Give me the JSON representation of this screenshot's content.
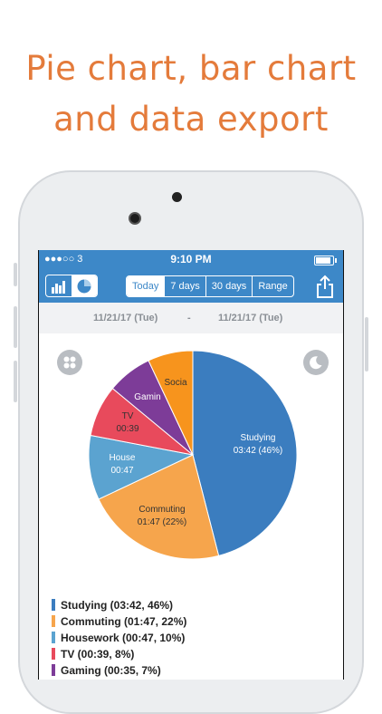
{
  "headline": {
    "line1": "Pie chart, bar chart",
    "line2": "and data export"
  },
  "status": {
    "carrier": "●●●○○ 3",
    "time": "9:10 PM"
  },
  "tabs": [
    {
      "label": "Today",
      "active": true
    },
    {
      "label": "7 days",
      "active": false
    },
    {
      "label": "30 days",
      "active": false
    },
    {
      "label": "Range",
      "active": false
    }
  ],
  "dates": {
    "start": "11/21/17 (Tue)",
    "separator": "-",
    "end": "11/21/17 (Tue)"
  },
  "pie_labels": {
    "studying_1": "Studying",
    "studying_2": "03:42 (46%)",
    "commuting_1": "Commuting",
    "commuting_2": "01:47 (22%)",
    "house_1": "House",
    "house_2": "00:47",
    "tv_1": "TV",
    "tv_2": "00:39",
    "gaming": "Gamin",
    "social": "Socia"
  },
  "chart_data": {
    "type": "pie",
    "categories": [
      "Studying",
      "Commuting",
      "Housework",
      "TV",
      "Gaming",
      "Social"
    ],
    "values": [
      46,
      22,
      10,
      8,
      7,
      7
    ],
    "colors": [
      "#3b7dbf",
      "#f6a54c",
      "#5ba3d0",
      "#e84a5c",
      "#7d3c98",
      "#f7941d"
    ]
  },
  "legend": [
    {
      "label": "Studying (03:42, 46%)",
      "color": "#3b7dbf"
    },
    {
      "label": "Commuting (01:47, 22%)",
      "color": "#f6a54c"
    },
    {
      "label": "Housework (00:47, 10%)",
      "color": "#5ba3d0"
    },
    {
      "label": "TV (00:39, 8%)",
      "color": "#e84a5c"
    },
    {
      "label": "Gaming (00:35, 7%)",
      "color": "#7d3c98"
    }
  ],
  "colors": {
    "headline": "#e47b3b",
    "appbar": "#3d88c8"
  }
}
